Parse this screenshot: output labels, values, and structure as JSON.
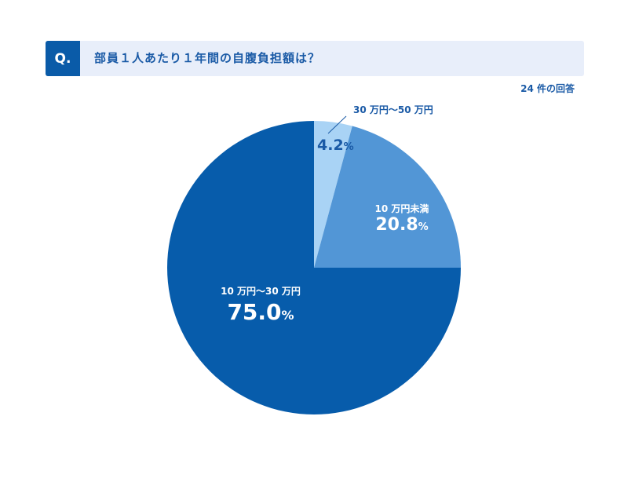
{
  "question": {
    "badge": "Q.",
    "text": "部員１人あたり１年間の自腹負担額は？"
  },
  "response_count": "24 件の回答",
  "colors": {
    "header_bg": "#e8eefa",
    "badge_bg": "#0a5ba8",
    "title_text": "#1a5aa6",
    "slice_30_50": "#a9d3f5",
    "slice_under_10": "#5296d6",
    "slice_10_30": "#075cab"
  },
  "labels": {
    "s1": {
      "category": "30 万円～50 万円",
      "value": "4.2",
      "pct": "%"
    },
    "s2": {
      "category": "10 万円未満",
      "value": "20.8",
      "pct": "%"
    },
    "s3": {
      "category": "10 万円～30 万円",
      "value": "75.0",
      "pct": "%"
    }
  },
  "chart_data": {
    "type": "pie",
    "title": "部員１人あたり１年間の自腹負担額は？",
    "subtitle": "24 件の回答",
    "categories": [
      "30 万円～50 万円",
      "10 万円未満",
      "10 万円～30 万円"
    ],
    "values": [
      4.2,
      20.8,
      75.0
    ],
    "colors": [
      "#a9d3f5",
      "#5296d6",
      "#075cab"
    ],
    "start_angle": "12 o'clock",
    "direction": "clockwise",
    "legend": "none (inline labels)"
  }
}
